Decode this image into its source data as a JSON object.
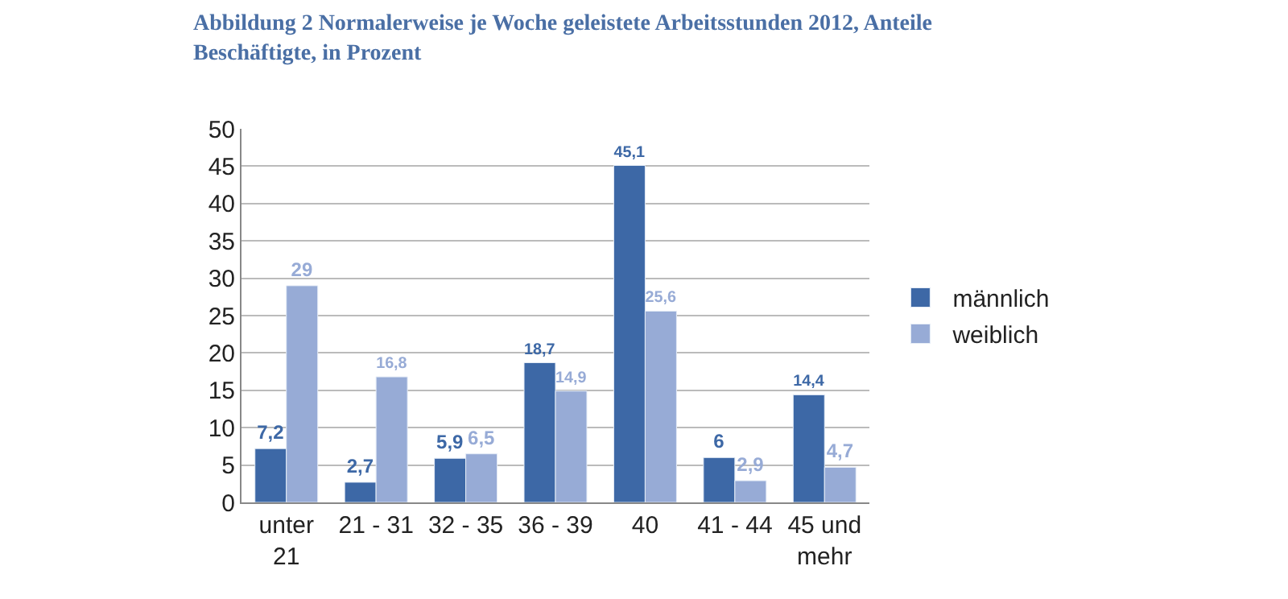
{
  "chart_data": {
    "type": "bar",
    "title": "Abbildung 2 Normalerweise je Woche geleistete Arbeitsstunden 2012, Anteile Beschäftigte, in Prozent",
    "categories": [
      "unter 21",
      "21 - 31",
      "32 - 35",
      "36 - 39",
      "40",
      "41 - 44",
      "45 und mehr"
    ],
    "series": [
      {
        "name": "männlich",
        "color": "#3d68a6",
        "values": [
          7.2,
          2.7,
          5.9,
          18.7,
          45.1,
          6,
          14.4
        ],
        "value_labels": [
          "7,2",
          "2,7",
          "5,9",
          "18,7",
          "45,1",
          "6",
          "14,4"
        ]
      },
      {
        "name": "weiblich",
        "color": "#97abd6",
        "values": [
          29,
          16.8,
          6.5,
          14.9,
          25.6,
          2.9,
          4.7
        ],
        "value_labels": [
          "29",
          "16,8",
          "6,5",
          "14,9",
          "25,6",
          "2,9",
          "4,7"
        ]
      }
    ],
    "ylim": [
      0,
      50
    ],
    "yticks": [
      0,
      5,
      10,
      15,
      20,
      25,
      30,
      35,
      40,
      45,
      50
    ],
    "grid": "y",
    "legend": "right"
  }
}
